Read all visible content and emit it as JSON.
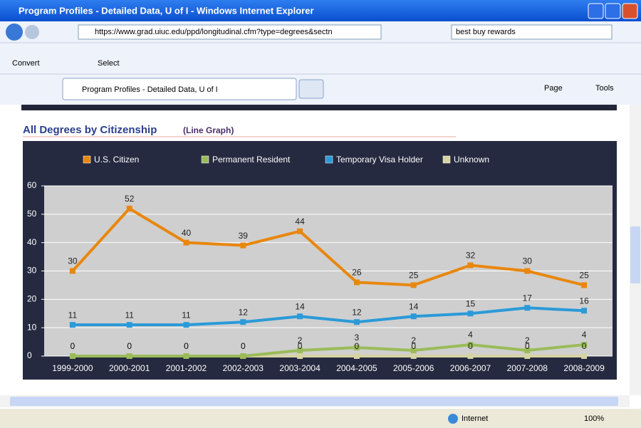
{
  "window": {
    "title": "Program Profiles - Detailed Data, U of I - Windows Internet Explorer",
    "url": "https://www.grad.uiuc.edu/ppd/longitudinal.cfm?type=degrees&sectn",
    "search": "best buy rewards",
    "links": [
      "Convert",
      "Select"
    ],
    "tab": "Program Profiles - Detailed Data, U of I",
    "tools": [
      "Page",
      "Tools"
    ],
    "status": {
      "zone": "Internet",
      "zoom": "100%"
    }
  },
  "chart_data": {
    "type": "line",
    "title": "All Degrees by Citizenship",
    "subtitle": "(Line Graph)",
    "categories": [
      "1999-2000",
      "2000-2001",
      "2001-2002",
      "2002-2003",
      "2003-2004",
      "2004-2005",
      "2005-2006",
      "2006-2007",
      "2007-2008",
      "2008-2009"
    ],
    "series": [
      {
        "name": "U.S. Citizen",
        "color": "#e8870e",
        "values": [
          30,
          52,
          40,
          39,
          44,
          26,
          25,
          32,
          30,
          25
        ]
      },
      {
        "name": "Permanent Resident",
        "color": "#9bbb59",
        "values": [
          0,
          0,
          0,
          0,
          2,
          3,
          2,
          4,
          2,
          4
        ]
      },
      {
        "name": "Temporary Visa Holder",
        "color": "#2b9ad8",
        "values": [
          11,
          11,
          11,
          12,
          14,
          12,
          14,
          15,
          17,
          16
        ]
      },
      {
        "name": "Unknown",
        "color": "#d6d3a4",
        "values": [
          0,
          0,
          0,
          0,
          0,
          0,
          0,
          0,
          0,
          0
        ]
      }
    ],
    "ylim": [
      0,
      60
    ],
    "yticks": [
      0,
      10,
      20,
      30,
      40,
      50,
      60
    ],
    "grid": true
  }
}
